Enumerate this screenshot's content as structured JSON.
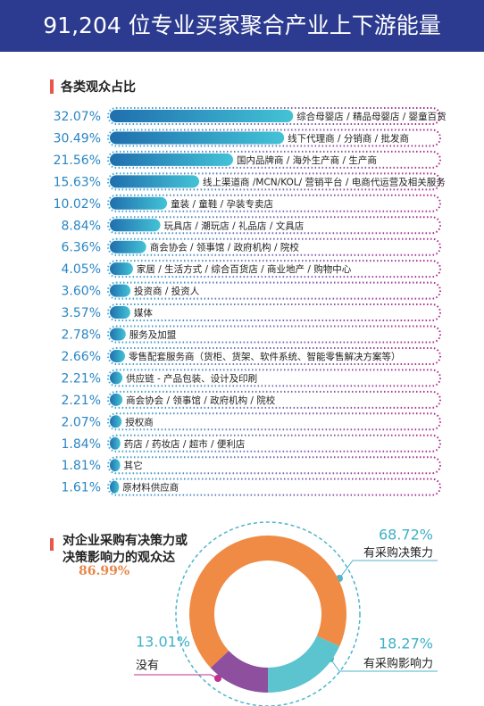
{
  "title": "91,204 位专业买家聚合产业上下游能量",
  "chart_data": [
    {
      "type": "bar",
      "title": "各类观众占比",
      "color": "#1f6fae",
      "categories": [
        "综合母婴店 / 精品母婴店 / 婴童百货",
        "线下代理商 / 分销商 / 批发商",
        "国内品牌商 / 海外生产商 / 生产商",
        "线上渠道商 /MCN/KOL/ 营销平台 / 电商代运营及相关服务",
        "童装 / 童鞋 / 孕装专卖店",
        "玩具店 / 潮玩店 / 礼品店 / 文具店",
        "商会协会 / 领事馆 / 政府机构 / 院校",
        "家居 / 生活方式 / 综合百货店 / 商业地产 / 购物中心",
        "投资商 / 投资人",
        "媒体",
        "服务及加盟",
        "零售配套服务商（货柜、货架、软件系统、智能零售解决方案等）",
        "供应链 - 产品包装、设计及印刷",
        "商会协会 / 领事馆 / 政府机构 / 院校",
        "授权商",
        "药店 / 药妆店 / 超市 / 便利店",
        "其它",
        "原材料供应商"
      ],
      "values": [
        32.07,
        30.49,
        21.56,
        15.63,
        10.02,
        8.84,
        6.36,
        4.05,
        3.6,
        3.57,
        2.78,
        2.66,
        2.21,
        2.21,
        2.07,
        1.84,
        1.81,
        1.61
      ],
      "value_labels": [
        "32.07%",
        "30.49%",
        "21.56%",
        "15.63%",
        "10.02%",
        "8.84%",
        "6.36%",
        "4.05%",
        "3.60%",
        "3.57%",
        "2.78%",
        "2.66%",
        "2.21%",
        "2.21%",
        "2.07%",
        "1.84%",
        "1.81%",
        "1.61%"
      ]
    },
    {
      "type": "donut",
      "title": "对企业采购有决策力或决策影响力的观众达",
      "annotation": {
        "value": 86.99,
        "label": "86.99%"
      },
      "categories": [
        "有采购决策力",
        "有采购影响力",
        "没有"
      ],
      "values": [
        68.72,
        18.27,
        13.01
      ],
      "value_labels": [
        "68.72%",
        "18.27%",
        "13.01%"
      ],
      "colors": [
        "#ef8b45",
        "#5cc4cf",
        "#8e4f9e"
      ]
    }
  ]
}
